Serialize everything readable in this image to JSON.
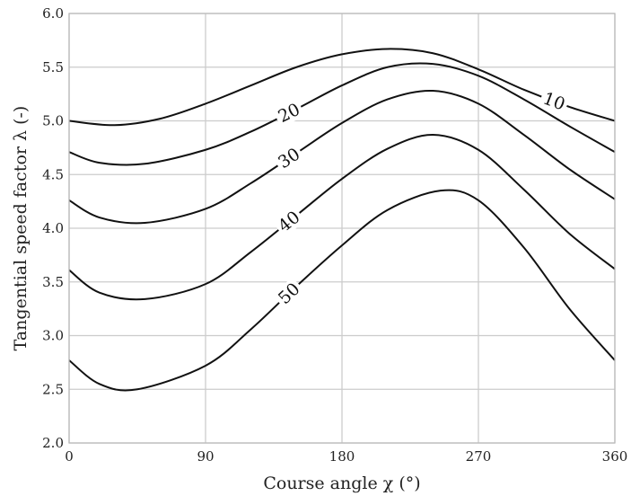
{
  "chart_data": {
    "type": "line",
    "title": "",
    "xlabel": "Course angle χ (°)",
    "ylabel": "Tangential speed factor λ (-)",
    "xlim": [
      0,
      360
    ],
    "ylim": [
      2.0,
      6.0
    ],
    "xticks": [
      0,
      90,
      180,
      270,
      360
    ],
    "yticks": [
      "2.0",
      "2.5",
      "3.0",
      "3.5",
      "4.0",
      "4.5",
      "5.0",
      "5.5",
      "6.0"
    ],
    "grid": true,
    "legend": "none",
    "line_color": "#111111",
    "series": [
      {
        "name": "10",
        "x": [
          0,
          30,
          60,
          90,
          120,
          150,
          180,
          210,
          240,
          270,
          300,
          330,
          360
        ],
        "y": [
          5.0,
          4.96,
          5.02,
          5.16,
          5.33,
          5.5,
          5.62,
          5.67,
          5.63,
          5.48,
          5.29,
          5.13,
          5.0
        ],
        "label_x": 320
      },
      {
        "name": "20",
        "x": [
          0,
          20,
          50,
          90,
          120,
          150,
          180,
          210,
          240,
          270,
          300,
          330,
          360
        ],
        "y": [
          4.71,
          4.61,
          4.6,
          4.73,
          4.9,
          5.11,
          5.33,
          5.5,
          5.53,
          5.42,
          5.2,
          4.95,
          4.71
        ],
        "label_x": 145
      },
      {
        "name": "30",
        "x": [
          0,
          20,
          50,
          90,
          120,
          150,
          180,
          210,
          240,
          270,
          300,
          330,
          360
        ],
        "y": [
          4.26,
          4.1,
          4.05,
          4.18,
          4.42,
          4.7,
          4.98,
          5.2,
          5.28,
          5.16,
          4.87,
          4.55,
          4.27
        ],
        "label_x": 145
      },
      {
        "name": "40",
        "x": [
          0,
          20,
          50,
          90,
          120,
          150,
          180,
          210,
          240,
          270,
          300,
          330,
          360
        ],
        "y": [
          3.61,
          3.4,
          3.34,
          3.48,
          3.78,
          4.12,
          4.46,
          4.74,
          4.87,
          4.73,
          4.36,
          3.95,
          3.62
        ],
        "label_x": 145
      },
      {
        "name": "50",
        "x": [
          0,
          20,
          45,
          90,
          120,
          150,
          180,
          210,
          245,
          270,
          300,
          330,
          360
        ],
        "y": [
          2.77,
          2.55,
          2.5,
          2.72,
          3.06,
          3.46,
          3.84,
          4.17,
          4.35,
          4.26,
          3.82,
          3.25,
          2.77
        ],
        "label_x": 145
      }
    ]
  }
}
